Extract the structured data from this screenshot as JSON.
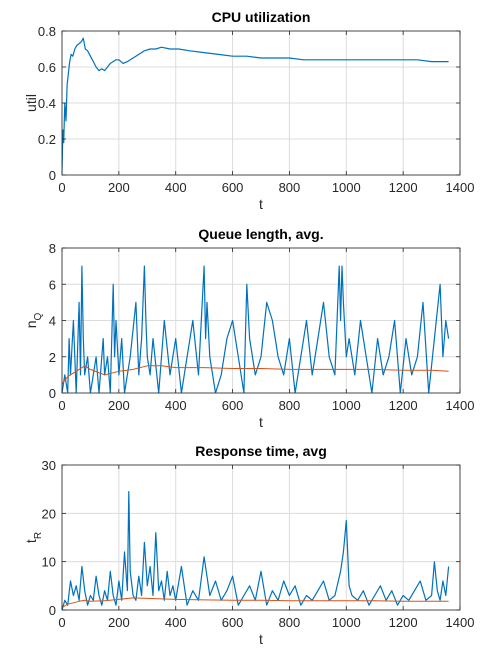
{
  "colors": {
    "series1": "#0072BD",
    "series2": "#D95319"
  },
  "chart_data": [
    {
      "type": "line",
      "title": "CPU utilization",
      "xlabel": "t",
      "ylabel": "util",
      "xlim": [
        0,
        1400
      ],
      "ylim": [
        0,
        0.8
      ],
      "xticks": [
        0,
        200,
        400,
        600,
        800,
        1000,
        1200,
        1400
      ],
      "yticks": [
        0,
        0.2,
        0.4,
        0.6,
        0.8
      ],
      "ytick_labels": [
        "0",
        "0.2",
        "0.4",
        "0.6",
        "0.8"
      ],
      "grid": true,
      "series": [
        {
          "color": "series1",
          "x": [
            0,
            3,
            6,
            10,
            14,
            18,
            22,
            27,
            32,
            38,
            45,
            52,
            60,
            68,
            75,
            82,
            90,
            100,
            110,
            120,
            130,
            140,
            150,
            160,
            170,
            180,
            190,
            200,
            215,
            230,
            250,
            270,
            290,
            310,
            330,
            350,
            380,
            410,
            450,
            500,
            550,
            600,
            650,
            700,
            750,
            800,
            850,
            900,
            950,
            1000,
            1050,
            1100,
            1150,
            1200,
            1250,
            1300,
            1330,
            1360
          ],
          "y": [
            0.02,
            0.25,
            0.18,
            0.4,
            0.3,
            0.5,
            0.56,
            0.63,
            0.67,
            0.66,
            0.7,
            0.72,
            0.73,
            0.74,
            0.76,
            0.7,
            0.69,
            0.66,
            0.63,
            0.6,
            0.58,
            0.59,
            0.58,
            0.6,
            0.62,
            0.63,
            0.64,
            0.64,
            0.62,
            0.63,
            0.65,
            0.67,
            0.69,
            0.7,
            0.7,
            0.71,
            0.7,
            0.7,
            0.69,
            0.68,
            0.67,
            0.66,
            0.66,
            0.65,
            0.65,
            0.65,
            0.64,
            0.64,
            0.64,
            0.64,
            0.64,
            0.64,
            0.64,
            0.64,
            0.64,
            0.63,
            0.63,
            0.63
          ]
        }
      ]
    },
    {
      "type": "line",
      "title": "Queue length, avg.",
      "xlabel": "t",
      "ylabel": "n",
      "ylabel_sub": "Q",
      "xlim": [
        0,
        1400
      ],
      "ylim": [
        0,
        8
      ],
      "xticks": [
        0,
        200,
        400,
        600,
        800,
        1000,
        1200,
        1400
      ],
      "yticks": [
        0,
        2,
        4,
        6,
        8
      ],
      "grid": true,
      "series": [
        {
          "color": "series1",
          "x": [
            0,
            10,
            20,
            25,
            30,
            40,
            45,
            50,
            60,
            65,
            70,
            75,
            80,
            90,
            100,
            110,
            120,
            130,
            145,
            150,
            160,
            170,
            180,
            185,
            190,
            200,
            210,
            220,
            240,
            260,
            270,
            280,
            290,
            295,
            300,
            310,
            320,
            340,
            350,
            360,
            380,
            400,
            420,
            440,
            460,
            480,
            500,
            505,
            510,
            520,
            540,
            560,
            580,
            600,
            620,
            640,
            650,
            660,
            680,
            700,
            720,
            740,
            760,
            780,
            800,
            820,
            840,
            860,
            880,
            900,
            920,
            940,
            960,
            975,
            980,
            985,
            990,
            1000,
            1010,
            1030,
            1050,
            1070,
            1090,
            1110,
            1130,
            1150,
            1170,
            1190,
            1210,
            1230,
            1250,
            1270,
            1290,
            1310,
            1330,
            1340,
            1350,
            1360
          ],
          "y": [
            0,
            1,
            0,
            3,
            1,
            4,
            2,
            0,
            5,
            1,
            7,
            3,
            1,
            2,
            0,
            1,
            2,
            0,
            3,
            1,
            2,
            0,
            6,
            2,
            4,
            1,
            3,
            0,
            2,
            5,
            1,
            3,
            7,
            4,
            2,
            1,
            3,
            0,
            2,
            4,
            1,
            3,
            0,
            2,
            4,
            1,
            7,
            3,
            5,
            2,
            0,
            1,
            3,
            4,
            2,
            0,
            6,
            3,
            1,
            2,
            5,
            4,
            2,
            1,
            3,
            0,
            2,
            4,
            1,
            3,
            5,
            2,
            1,
            7,
            4,
            7,
            5,
            2,
            3,
            1,
            4,
            2,
            0,
            3,
            1,
            2,
            4,
            0,
            3,
            1,
            2,
            5,
            0,
            3,
            6,
            2,
            4,
            3
          ]
        },
        {
          "color": "series2",
          "x": [
            0,
            20,
            40,
            60,
            80,
            100,
            150,
            200,
            250,
            300,
            350,
            400,
            500,
            600,
            700,
            800,
            900,
            1000,
            1100,
            1200,
            1300,
            1360
          ],
          "y": [
            0.5,
            0.9,
            1.1,
            1.3,
            1.5,
            1.3,
            1.0,
            1.2,
            1.3,
            1.5,
            1.5,
            1.4,
            1.4,
            1.35,
            1.35,
            1.3,
            1.3,
            1.3,
            1.3,
            1.25,
            1.25,
            1.2
          ]
        }
      ]
    },
    {
      "type": "line",
      "title": "Response time, avg",
      "xlabel": "t",
      "ylabel": "t",
      "ylabel_sub": "R",
      "xlim": [
        0,
        1400
      ],
      "ylim": [
        0,
        30
      ],
      "xticks": [
        0,
        200,
        400,
        600,
        800,
        1000,
        1200,
        1400
      ],
      "yticks": [
        0,
        10,
        20,
        30
      ],
      "grid": true,
      "series": [
        {
          "color": "series1",
          "x": [
            0,
            10,
            20,
            30,
            40,
            50,
            60,
            70,
            80,
            90,
            100,
            110,
            120,
            130,
            140,
            150,
            160,
            170,
            180,
            190,
            200,
            210,
            220,
            230,
            235,
            240,
            250,
            260,
            270,
            280,
            290,
            300,
            310,
            320,
            330,
            340,
            350,
            360,
            370,
            380,
            390,
            400,
            420,
            440,
            460,
            480,
            500,
            520,
            540,
            560,
            580,
            600,
            620,
            640,
            660,
            680,
            700,
            720,
            740,
            760,
            780,
            800,
            820,
            840,
            860,
            880,
            900,
            920,
            940,
            960,
            980,
            990,
            1000,
            1010,
            1020,
            1040,
            1060,
            1080,
            1100,
            1120,
            1140,
            1160,
            1180,
            1200,
            1220,
            1240,
            1260,
            1280,
            1300,
            1310,
            1320,
            1330,
            1340,
            1350,
            1360
          ],
          "y": [
            0,
            2,
            1,
            6,
            3,
            5,
            2,
            9,
            4,
            1,
            3,
            2,
            7,
            3,
            1,
            4,
            2,
            8,
            3,
            1,
            6,
            2,
            12,
            4,
            24.5,
            8,
            3,
            2,
            7,
            3,
            14,
            5,
            9,
            3,
            16,
            4,
            6,
            2,
            8,
            3,
            5,
            2,
            9,
            1,
            4,
            2,
            11,
            3,
            6,
            2,
            4,
            7,
            1,
            3,
            5,
            2,
            8,
            1,
            4,
            2,
            6,
            3,
            5,
            1,
            3,
            2,
            4,
            6,
            2,
            3,
            8,
            12,
            18.5,
            5,
            3,
            2,
            4,
            1,
            3,
            5,
            2,
            4,
            1,
            3,
            2,
            4,
            6,
            2,
            3,
            10,
            4,
            2,
            6,
            3,
            9
          ]
        },
        {
          "color": "series2",
          "x": [
            0,
            20,
            40,
            60,
            80,
            100,
            150,
            200,
            250,
            300,
            350,
            400,
            500,
            600,
            700,
            800,
            900,
            1000,
            1100,
            1200,
            1300,
            1360
          ],
          "y": [
            0.5,
            1.2,
            1.5,
            1.8,
            2.0,
            1.8,
            1.9,
            2.2,
            2.5,
            2.4,
            2.3,
            2.2,
            2.1,
            2.0,
            2.0,
            1.9,
            1.9,
            1.9,
            1.9,
            1.8,
            1.8,
            1.8
          ]
        }
      ]
    }
  ]
}
